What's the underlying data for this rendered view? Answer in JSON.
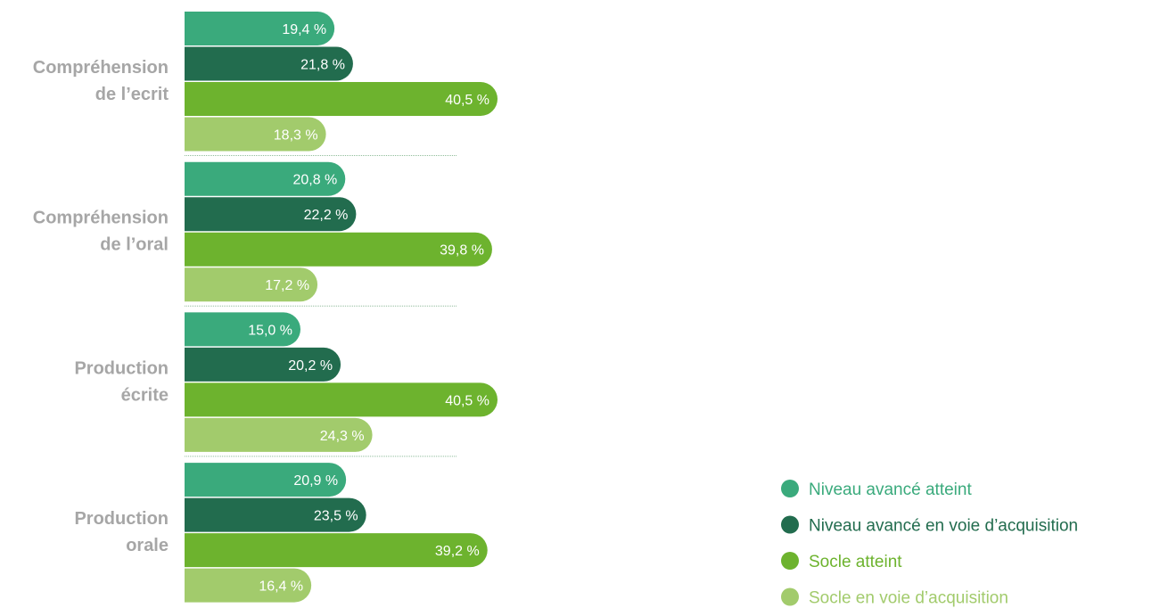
{
  "chart_data": {
    "type": "bar",
    "orientation": "horizontal",
    "categories": [
      [
        "Compréhension",
        "de l’ecrit"
      ],
      [
        "Compréhension",
        "de l’oral"
      ],
      [
        "Production",
        "écrite"
      ],
      [
        "Production",
        "orale"
      ]
    ],
    "series": [
      {
        "name": "Niveau avancé atteint",
        "color": "#3aaa7c",
        "values": [
          19.4,
          20.8,
          15.0,
          20.9
        ],
        "labels": [
          "19,4 %",
          "20,8 %",
          "15,0 %",
          "20,9 %"
        ]
      },
      {
        "name": "Niveau avancé en voie d’acquisition",
        "color": "#226c4e",
        "values": [
          21.8,
          22.2,
          20.2,
          23.5
        ],
        "labels": [
          "21,8 %",
          "22,2 %",
          "20,2 %",
          "23,5 %"
        ]
      },
      {
        "name": "Socle atteint",
        "color": "#6db32e",
        "values": [
          40.5,
          39.8,
          40.5,
          39.2
        ],
        "labels": [
          "40,5 %",
          "39,8 %",
          "40,5 %",
          "39,2 %"
        ]
      },
      {
        "name": "Socle en voie d’acquisition",
        "color": "#a2cb6c",
        "values": [
          18.3,
          17.2,
          24.3,
          16.4
        ],
        "labels": [
          "18,3 %",
          "17,2 %",
          "24,3 %",
          "16,4 %"
        ]
      }
    ],
    "xlim": [
      0,
      40.5
    ],
    "grid": false,
    "legend_position": "bottom-right"
  }
}
